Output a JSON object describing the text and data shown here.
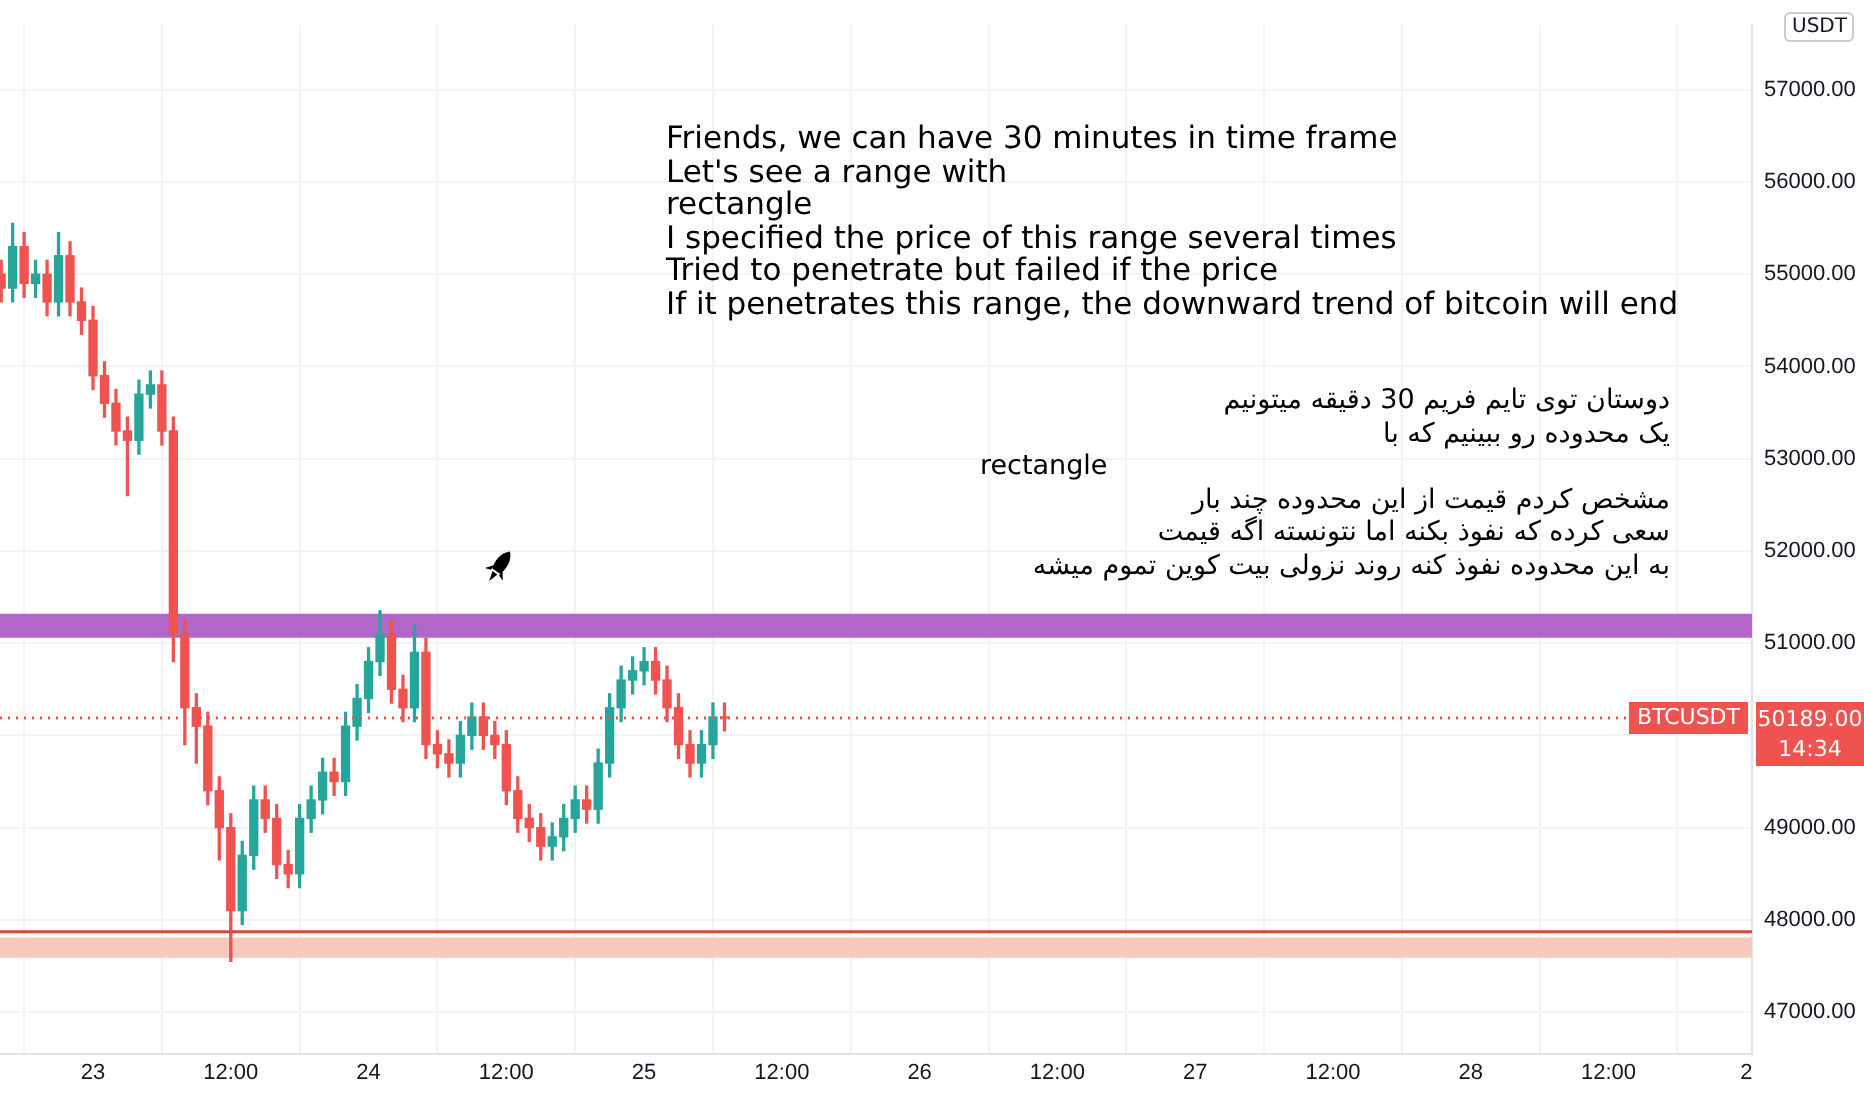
{
  "chart_data": {
    "type": "candlestick",
    "ylabel": "USDT",
    "x": [
      "--02-22T16:00",
      "--02-22T17:00",
      "--02-22T18:00",
      "--02-22T19:00",
      "--02-22T20:00",
      "--02-22T21:00",
      "--02-22T22:00",
      "--02-22T23:00",
      "--02-23T00:00",
      "--02-23T01:00",
      "--02-23T02:00",
      "--02-23T03:00",
      "--02-23T04:00",
      "--02-23T05:00",
      "--02-23T06:00",
      "--02-23T07:00",
      "--02-23T08:00",
      "--02-23T09:00",
      "--02-23T10:00",
      "--02-23T11:00",
      "--02-23T12:00",
      "--02-23T13:00",
      "--02-23T14:00",
      "--02-23T15:00",
      "--02-23T16:00",
      "--02-23T17:00",
      "--02-23T18:00",
      "--02-23T19:00",
      "--02-23T20:00",
      "--02-23T21:00",
      "--02-23T22:00",
      "--02-23T23:00",
      "--02-24T00:00",
      "--02-24T01:00",
      "--02-24T02:00",
      "--02-24T03:00",
      "--02-24T04:00",
      "--02-24T05:00",
      "--02-24T06:00",
      "--02-24T07:00",
      "--02-24T08:00",
      "--02-24T09:00",
      "--02-24T10:00",
      "--02-24T11:00",
      "--02-24T12:00",
      "--02-24T13:00",
      "--02-24T14:00",
      "--02-24T15:00",
      "--02-24T16:00",
      "--02-24T17:00",
      "--02-24T18:00",
      "--02-24T19:00",
      "--02-24T20:00",
      "--02-24T21:00",
      "--02-24T22:00",
      "--02-24T23:00",
      "--02-25T00:00",
      "--02-25T01:00",
      "--02-25T02:00",
      "--02-25T03:00",
      "--02-25T04:00",
      "--02-25T05:00",
      "--02-25T06:00",
      "--02-25T07:00"
    ],
    "ohlc": [
      [
        55000,
        55150,
        54700,
        54850
      ],
      [
        54850,
        55550,
        54700,
        55300
      ],
      [
        55300,
        55450,
        54750,
        54900
      ],
      [
        54900,
        55150,
        54750,
        55000
      ],
      [
        55000,
        55150,
        54550,
        54700
      ],
      [
        54700,
        55450,
        54550,
        55200
      ],
      [
        55200,
        55350,
        54550,
        54700
      ],
      [
        54700,
        54850,
        54350,
        54500
      ],
      [
        54500,
        54650,
        53750,
        53900
      ],
      [
        53900,
        54050,
        53450,
        53600
      ],
      [
        53600,
        53750,
        53150,
        53300
      ],
      [
        53300,
        53450,
        52600,
        53200
      ],
      [
        53200,
        53850,
        53050,
        53700
      ],
      [
        53700,
        53950,
        53550,
        53800
      ],
      [
        53800,
        53950,
        53150,
        53300
      ],
      [
        53300,
        53450,
        50800,
        51100
      ],
      [
        51100,
        51250,
        49900,
        50300
      ],
      [
        50300,
        50450,
        49700,
        50100
      ],
      [
        50100,
        50250,
        49250,
        49400
      ],
      [
        49400,
        49550,
        48650,
        49000
      ],
      [
        49000,
        49150,
        47550,
        48100
      ],
      [
        48100,
        48850,
        47950,
        48700
      ],
      [
        48700,
        49450,
        48550,
        49300
      ],
      [
        49300,
        49450,
        48950,
        49100
      ],
      [
        49100,
        49250,
        48450,
        48600
      ],
      [
        48600,
        48750,
        48350,
        48500
      ],
      [
        48500,
        49250,
        48350,
        49100
      ],
      [
        49100,
        49450,
        48950,
        49300
      ],
      [
        49300,
        49750,
        49150,
        49600
      ],
      [
        49600,
        49750,
        49350,
        49500
      ],
      [
        49500,
        50250,
        49350,
        50100
      ],
      [
        50100,
        50550,
        49950,
        50400
      ],
      [
        50400,
        50950,
        50250,
        50800
      ],
      [
        50800,
        51350,
        50650,
        51100
      ],
      [
        51100,
        51250,
        50350,
        50500
      ],
      [
        50500,
        50650,
        50150,
        50300
      ],
      [
        50300,
        51200,
        50150,
        50900
      ],
      [
        50900,
        51050,
        49750,
        49900
      ],
      [
        49900,
        50050,
        49650,
        49800
      ],
      [
        49800,
        49950,
        49550,
        49700
      ],
      [
        49700,
        50150,
        49550,
        50000
      ],
      [
        50000,
        50350,
        49850,
        50200
      ],
      [
        50200,
        50350,
        49850,
        50000
      ],
      [
        50000,
        50150,
        49750,
        49900
      ],
      [
        49900,
        50050,
        49250,
        49400
      ],
      [
        49400,
        49550,
        48950,
        49100
      ],
      [
        49100,
        49250,
        48850,
        49000
      ],
      [
        49000,
        49150,
        48650,
        48800
      ],
      [
        48800,
        49050,
        48650,
        48900
      ],
      [
        48900,
        49250,
        48750,
        49100
      ],
      [
        49100,
        49450,
        48950,
        49300
      ],
      [
        49300,
        49450,
        49050,
        49200
      ],
      [
        49200,
        49850,
        49050,
        49700
      ],
      [
        49700,
        50450,
        49550,
        50300
      ],
      [
        50300,
        50750,
        50150,
        50600
      ],
      [
        50600,
        50850,
        50450,
        50700
      ],
      [
        50700,
        50950,
        50550,
        50800
      ],
      [
        50800,
        50950,
        50450,
        50600
      ],
      [
        50600,
        50750,
        50150,
        50300
      ],
      [
        50300,
        50450,
        49750,
        49900
      ],
      [
        49900,
        50050,
        49550,
        49700
      ],
      [
        49700,
        50050,
        49550,
        49900
      ],
      [
        49900,
        50350,
        49750,
        50200
      ],
      [
        50200,
        50350,
        50050,
        50189
      ]
    ],
    "colors": [
      "#ef5350",
      "#26a69a",
      "#ef5350",
      "#26a69a",
      "#ef5350",
      "#26a69a",
      "#ef5350",
      "#ef5350",
      "#ef5350",
      "#ef5350",
      "#ef5350",
      "#ef5350",
      "#26a69a",
      "#26a69a",
      "#ef5350",
      "#ef5350",
      "#ef5350",
      "#ef5350",
      "#ef5350",
      "#ef5350",
      "#ef5350",
      "#26a69a",
      "#26a69a",
      "#ef5350",
      "#ef5350",
      "#ef5350",
      "#26a69a",
      "#26a69a",
      "#26a69a",
      "#ef5350",
      "#26a69a",
      "#26a69a",
      "#26a69a",
      "#26a69a",
      "#ef5350",
      "#ef5350",
      "#26a69a",
      "#ef5350",
      "#ef5350",
      "#ef5350",
      "#26a69a",
      "#26a69a",
      "#ef5350",
      "#ef5350",
      "#ef5350",
      "#ef5350",
      "#ef5350",
      "#ef5350",
      "#26a69a",
      "#26a69a",
      "#26a69a",
      "#ef5350",
      "#26a69a",
      "#26a69a",
      "#26a69a",
      "#26a69a",
      "#26a69a",
      "#ef5350",
      "#ef5350",
      "#ef5350",
      "#ef5350",
      "#26a69a",
      "#26a69a",
      "#ef5350"
    ],
    "xlim": [
      "--02-22T15:54",
      "--02-29T00:30"
    ],
    "xticks": [
      {
        "value": "--02-23",
        "label": "23"
      },
      {
        "value": "--02-23T12:00",
        "label": "12:00"
      },
      {
        "value": "--02-24",
        "label": "24"
      },
      {
        "value": "--02-24T12:00",
        "label": "12:00"
      },
      {
        "value": "--02-25",
        "label": "25"
      },
      {
        "value": "--02-25T12:00",
        "label": "12:00"
      },
      {
        "value": "--02-26",
        "label": "26"
      },
      {
        "value": "--02-26T12:00",
        "label": "12:00"
      },
      {
        "value": "--02-27",
        "label": "27"
      },
      {
        "value": "--02-27T12:00",
        "label": "12:00"
      },
      {
        "value": "--02-28",
        "label": "28"
      },
      {
        "value": "--02-28T12:00",
        "label": "12:00"
      },
      {
        "value": "--02-29",
        "label": "2"
      }
    ],
    "ylim": [
      46550,
      57700
    ],
    "yticks": [
      {
        "value": 47000,
        "label": "47000.00"
      },
      {
        "value": 48000,
        "label": "48000.00"
      },
      {
        "value": 49000,
        "label": "49000.00"
      },
      {
        "value": 50000,
        "label": null
      },
      {
        "value": 51000,
        "label": "51000.00"
      },
      {
        "value": 52000,
        "label": "52000.00"
      },
      {
        "value": 53000,
        "label": "53000.00"
      },
      {
        "value": 54000,
        "label": "54000.00"
      },
      {
        "value": 55000,
        "label": "55000.00"
      },
      {
        "value": 56000,
        "label": "56000.00"
      },
      {
        "value": 57000,
        "label": "57000.00"
      }
    ],
    "grid": true,
    "bands": [
      {
        "axis": "y",
        "from": 51060,
        "to": 51320,
        "color": "#b366c9"
      },
      {
        "axis": "y",
        "from": 47590,
        "to": 47810,
        "color": "#f6c9bd"
      }
    ],
    "ref_lines": [
      {
        "axis": "y",
        "value": 47870,
        "color": "#e0453c",
        "line_style": "solid"
      },
      {
        "axis": "y",
        "value": 50189,
        "label": "BTCUSDT",
        "color": "#ef5350",
        "line_style": "dotted"
      }
    ],
    "annotations": [
      "Friends, we can have 30 minutes in time frame\nLet's see a range with\nrectangle\nI specified the price of this range several times\nTried to penetrate but failed if the price\nIf it penetrates this range, the downward trend of bitcoin will end",
      "دوستان توی تایم فریم 30 دقیقه میتونیم\nیک محدوده رو ببینیم که با\nrectangle\nمشخص کردم قیمت از این محدوده چند بار\nسعی کرده که نفوذ بکنه اما نتونسته اگه قیمت\nبه این محدوده نفوذ کنه روند نزولی بیت کوین تموم میشه",
      "14:34",
      "50189.00"
    ]
  }
}
